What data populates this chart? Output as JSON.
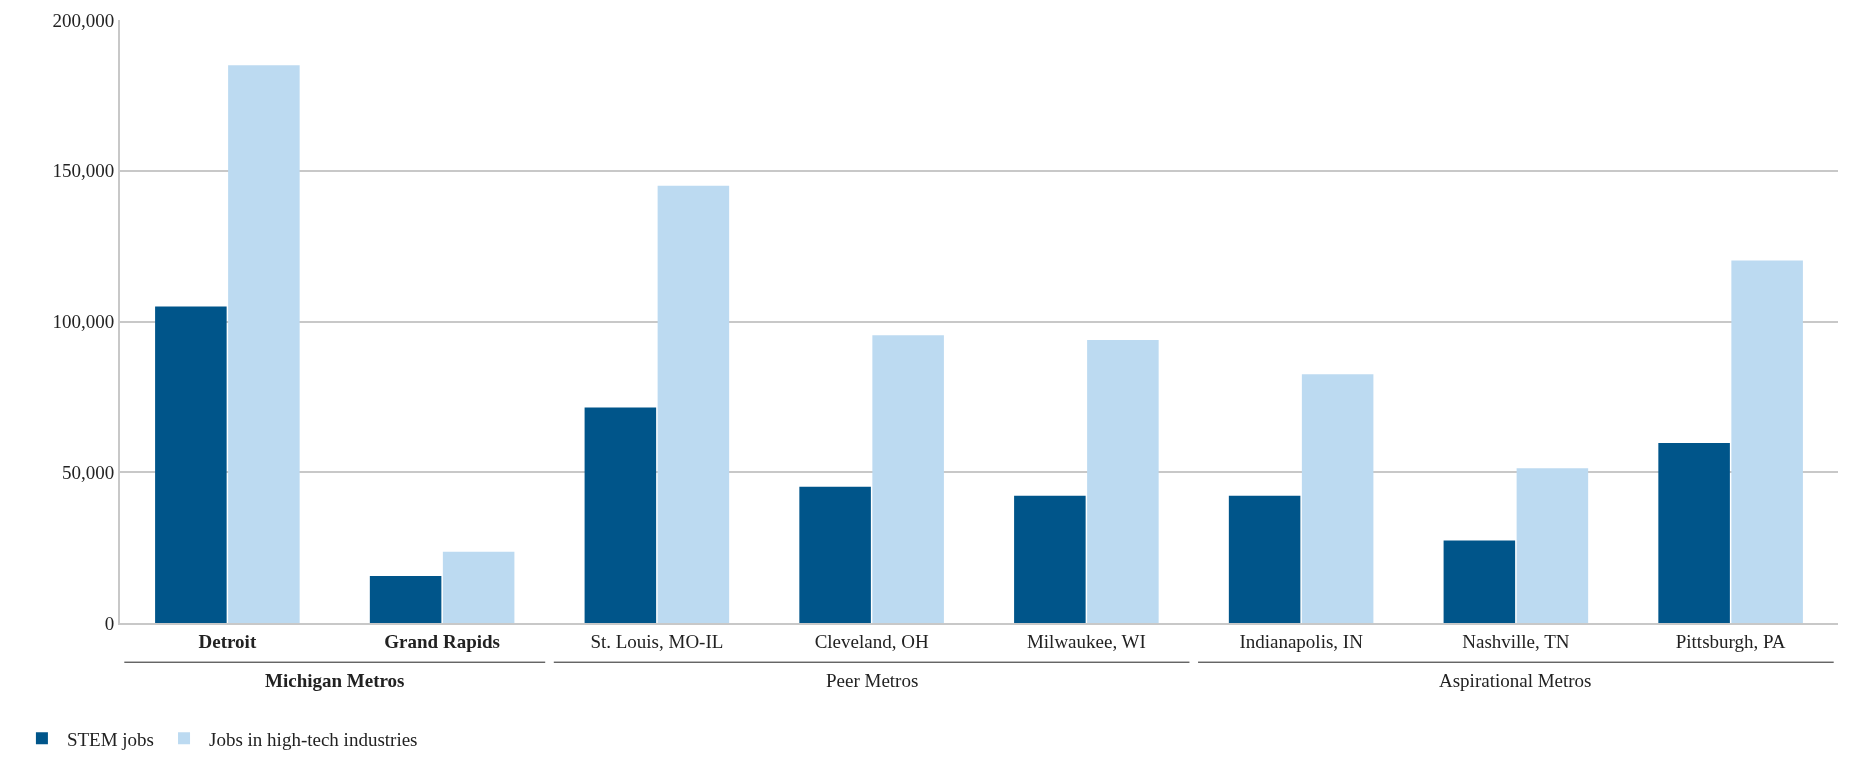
{
  "chart_data": {
    "type": "bar",
    "categories": [
      "Detroit",
      "Grand Rapids",
      "St. Louis, MO-IL",
      "Cleveland, OH",
      "Milwaukee, WI",
      "Indianapolis, IN",
      "Nashville, TN",
      "Pittsburgh, PA"
    ],
    "series": [
      {
        "name": "STEM jobs",
        "color": "#00558a",
        "values": [
          105000,
          15600,
          71500,
          45200,
          42200,
          42200,
          27400,
          59700
        ]
      },
      {
        "name": "Jobs in high-tech industries",
        "color": "#bcdaf1",
        "values": [
          185000,
          23600,
          145000,
          95400,
          93900,
          82500,
          51300,
          120200
        ]
      }
    ],
    "ylim": [
      0,
      200000
    ],
    "yticks": [
      {
        "value": 0,
        "label": "0"
      },
      {
        "value": 50000,
        "label": "50,000"
      },
      {
        "value": 100000,
        "label": "100,000"
      },
      {
        "value": 150000,
        "label": "150,000"
      },
      {
        "value": 200000,
        "label": "200,000"
      }
    ],
    "grid": "y",
    "legend": "bottom left",
    "annotations": [
      "Michigan Metros",
      "Peer Metros",
      "Aspirational Metros"
    ]
  }
}
